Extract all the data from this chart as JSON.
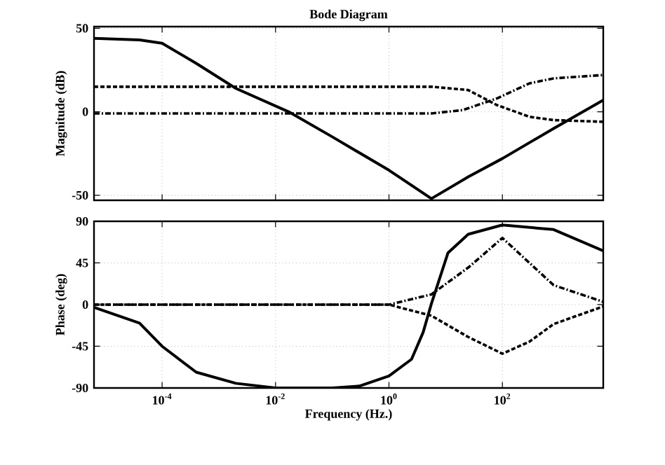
{
  "chart_data": [
    {
      "type": "line",
      "title": "Bode Diagram",
      "ylabel": "Magnitude (dB)",
      "log": "x",
      "grid": true,
      "tick_labels": "y",
      "marker": "none",
      "xlim": [
        6.3e-06,
        6000
      ],
      "ylim": [
        -53,
        51
      ],
      "yticks": [
        -50,
        0,
        50
      ],
      "xticks": [
        {
          "value": 0.0001,
          "label": null
        },
        {
          "value": 0.01,
          "label": null
        },
        {
          "value": 1,
          "label": null
        },
        {
          "value": 100,
          "label": null
        }
      ],
      "series": [
        {
          "color": "#000000",
          "line_style": "solid",
          "x": [
            6.3e-06,
            4e-05,
            0.0001,
            0.0004,
            0.002,
            0.017,
            0.1,
            1,
            5.6,
            25,
            100,
            800,
            6000
          ],
          "values": [
            44,
            43,
            41,
            29,
            14,
            0,
            -15,
            -35,
            -52,
            -39,
            -28,
            -10,
            7
          ]
        },
        {
          "color": "#000000",
          "line_style": "dashed",
          "x": [
            6.3e-06,
            5.6,
            25,
            80,
            300,
            800,
            6000
          ],
          "values": [
            15,
            15,
            13,
            4,
            -3,
            -5,
            -6
          ]
        },
        {
          "color": "#000000",
          "line_style": "dashdot",
          "x": [
            6.3e-06,
            5.6,
            20,
            80,
            300,
            800,
            6000
          ],
          "values": [
            -1,
            -1,
            1,
            8,
            17,
            20,
            22
          ]
        }
      ]
    },
    {
      "type": "line",
      "xlabel": "Frequency (Hz.)",
      "ylabel": "Phase (deg)",
      "log": "x",
      "grid": true,
      "marker": "none",
      "xlim": [
        6.3e-06,
        6000
      ],
      "ylim": [
        -90,
        90
      ],
      "yticks": [
        -90,
        -45,
        0,
        45,
        90
      ],
      "xticks": [
        {
          "value": 0.0001,
          "label": "10$^{-4}$"
        },
        {
          "value": 0.01,
          "label": "10$^{-2}$"
        },
        {
          "value": 1,
          "label": "10$^{0}$"
        },
        {
          "value": 100,
          "label": "10$^{2}$"
        }
      ],
      "series": [
        {
          "color": "#000000",
          "line_style": "solid",
          "x": [
            6.3e-06,
            4e-05,
            0.0001,
            0.0004,
            0.002,
            0.01,
            0.1,
            0.3,
            1,
            2.5,
            4,
            5.6,
            11,
            25,
            100,
            800,
            6000
          ],
          "values": [
            -3,
            -20,
            -45,
            -73,
            -85,
            -90,
            -90,
            -88,
            -77,
            -59,
            -30,
            1,
            56,
            76,
            86,
            81,
            58
          ]
        },
        {
          "color": "#000000",
          "line_style": "dashdot",
          "x": [
            6.3e-06,
            1,
            5.6,
            25,
            100,
            300,
            800,
            6000
          ],
          "values": [
            0,
            0,
            11,
            40,
            72,
            45,
            21,
            3
          ]
        },
        {
          "color": "#000000",
          "line_style": "dashed",
          "x": [
            6.3e-06,
            1,
            5.6,
            25,
            100,
            300,
            800,
            6000
          ],
          "values": [
            0,
            0,
            -12,
            -35,
            -53,
            -40,
            -21,
            -2
          ]
        }
      ]
    }
  ]
}
